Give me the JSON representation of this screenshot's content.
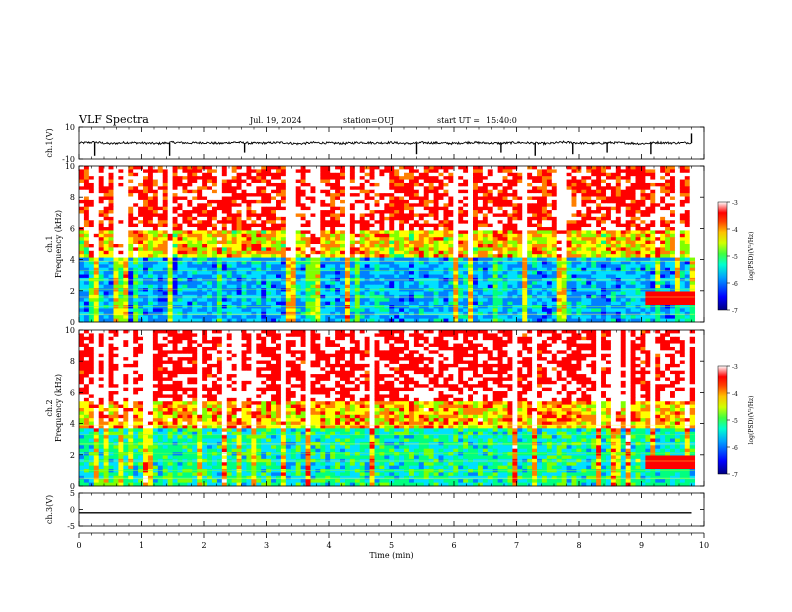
{
  "header": {
    "title": "VLF Spectra",
    "date": "Jul. 19, 2024",
    "station": "station=OUJ",
    "start_label": "start UT =",
    "start_time": "15:40:0"
  },
  "chart_data": [
    {
      "type": "line",
      "name": "ch1-voltage",
      "ylabel": "ch.1(V)",
      "ylim": [
        -10,
        10
      ],
      "y_ticks": [
        "10",
        "-10"
      ],
      "x": [
        0,
        0.25,
        0.5,
        0.75,
        1,
        1.25,
        1.5,
        1.75,
        2,
        2.25,
        2.5,
        2.75,
        3,
        3.25,
        3.5,
        3.75,
        4,
        4.25,
        4.5,
        4.75,
        5,
        5.25,
        5.5,
        5.75,
        6,
        6.25,
        6.5,
        6.75,
        7,
        7.25,
        7.5,
        7.75,
        8,
        8.25,
        8.5,
        8.75,
        9,
        9.25,
        9.5,
        9.8
      ],
      "y": [
        0,
        0.5,
        -0.5,
        0.3,
        0,
        -0.4,
        0.4,
        0,
        0.2,
        -0.3,
        0.5,
        -0.2,
        0,
        0.3,
        -0.5,
        0.2,
        0,
        -0.3,
        0.4,
        0,
        0.3,
        -0.4,
        0.2,
        0,
        -0.3,
        0.4,
        0,
        -0.2,
        0.3,
        0,
        -0.4,
        0.5,
        0,
        -0.3,
        0.2,
        0,
        -0.5,
        0.3,
        0,
        0.2
      ],
      "spikes": [
        {
          "x": 0.25,
          "y": -8
        },
        {
          "x": 1.45,
          "y": -8
        },
        {
          "x": 2.65,
          "y": -6
        },
        {
          "x": 5.4,
          "y": -7
        },
        {
          "x": 6.75,
          "y": -6
        },
        {
          "x": 7.3,
          "y": -8
        },
        {
          "x": 7.9,
          "y": -7
        },
        {
          "x": 8.45,
          "y": -6
        },
        {
          "x": 9.15,
          "y": -7
        },
        {
          "x": 9.8,
          "y": 6
        }
      ]
    },
    {
      "type": "heatmap",
      "name": "ch1-spectrogram",
      "ylabel": "ch.1 Frequency (kHz)",
      "ylim": [
        0,
        10
      ],
      "y_ticks": [
        "0",
        "2",
        "4",
        "6",
        "8",
        "10"
      ],
      "colorbar": {
        "label": "log(PSD)(V²/Hz)",
        "ticks": [
          "-3",
          "-4",
          "-5",
          "-6",
          "-7"
        ],
        "range": [
          -7,
          -3
        ]
      },
      "description_levels": {
        "high_band_khz": [
          6,
          10
        ],
        "mid_band_khz": [
          4,
          6
        ],
        "low_band_khz": [
          0,
          4
        ]
      },
      "x_range": [
        0,
        9.85
      ]
    },
    {
      "type": "heatmap",
      "name": "ch2-spectrogram",
      "ylabel": "ch.2 Frequency (kHz)",
      "ylim": [
        0,
        10
      ],
      "y_ticks": [
        "0",
        "2",
        "4",
        "6",
        "8",
        "10"
      ],
      "colorbar": {
        "label": "log(PSD)(V²/Hz)",
        "ticks": [
          "-3",
          "-4",
          "-5",
          "-6",
          "-7"
        ],
        "range": [
          -7,
          -3
        ]
      },
      "x_range": [
        0,
        9.85
      ]
    },
    {
      "type": "line",
      "name": "ch3-voltage",
      "ylabel": "ch.3(V)",
      "ylim": [
        -5,
        5
      ],
      "y_ticks": [
        "5",
        "0",
        "-5"
      ],
      "x": [
        0,
        9.8
      ],
      "y": [
        -1,
        -1
      ]
    }
  ],
  "x_axis": {
    "label": "Time (min)",
    "ticks": [
      "0",
      "1",
      "2",
      "3",
      "4",
      "5",
      "6",
      "7",
      "8",
      "9",
      "10"
    ],
    "range": [
      0,
      10
    ]
  },
  "colormap": [
    "#00007f",
    "#0000ff",
    "#0080ff",
    "#00e0ff",
    "#00ff80",
    "#80ff00",
    "#ffff00",
    "#ff8000",
    "#ff0000",
    "#ffffff"
  ]
}
